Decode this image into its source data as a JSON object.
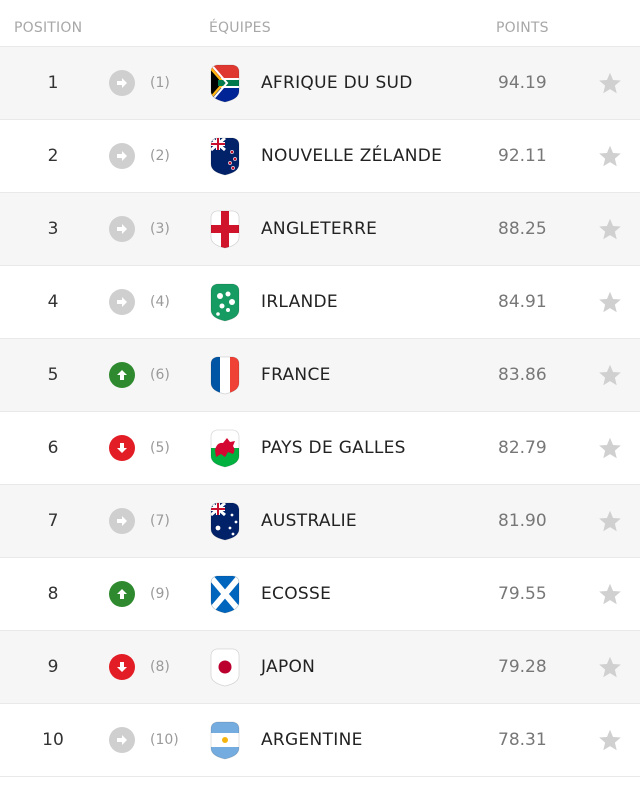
{
  "header": {
    "position": "POSITION",
    "teams": "ÉQUIPES",
    "points": "POINTS"
  },
  "rows": [
    {
      "rank": "1",
      "movement": "same",
      "prev": "(1)",
      "team": "AFRIQUE DU SUD",
      "points": "94.19",
      "flag": "south-africa"
    },
    {
      "rank": "2",
      "movement": "same",
      "prev": "(2)",
      "team": "NOUVELLE ZÉLANDE",
      "points": "92.11",
      "flag": "new-zealand"
    },
    {
      "rank": "3",
      "movement": "same",
      "prev": "(3)",
      "team": "ANGLETERRE",
      "points": "88.25",
      "flag": "england"
    },
    {
      "rank": "4",
      "movement": "same",
      "prev": "(4)",
      "team": "IRLANDE",
      "points": "84.91",
      "flag": "ireland"
    },
    {
      "rank": "5",
      "movement": "up",
      "prev": "(6)",
      "team": "FRANCE",
      "points": "83.86",
      "flag": "france"
    },
    {
      "rank": "6",
      "movement": "down",
      "prev": "(5)",
      "team": "PAYS DE GALLES",
      "points": "82.79",
      "flag": "wales"
    },
    {
      "rank": "7",
      "movement": "same",
      "prev": "(7)",
      "team": "AUSTRALIE",
      "points": "81.90",
      "flag": "australia"
    },
    {
      "rank": "8",
      "movement": "up",
      "prev": "(9)",
      "team": "ECOSSE",
      "points": "79.55",
      "flag": "scotland"
    },
    {
      "rank": "9",
      "movement": "down",
      "prev": "(8)",
      "team": "JAPON",
      "points": "79.28",
      "flag": "japan"
    },
    {
      "rank": "10",
      "movement": "same",
      "prev": "(10)",
      "team": "ARGENTINE",
      "points": "78.31",
      "flag": "argentina"
    }
  ],
  "colors": {
    "up": "#2f8a2f",
    "down": "#e21d25",
    "same": "#cfcfcf",
    "star": "#d0d0d0"
  }
}
